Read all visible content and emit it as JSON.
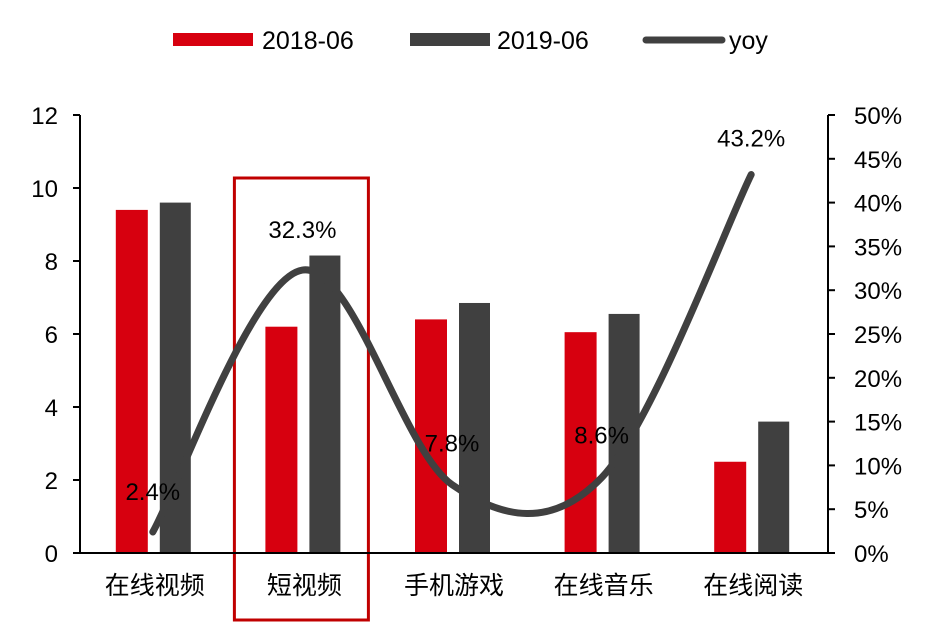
{
  "chart_data": {
    "type": "bar+line",
    "categories": [
      "在线视频",
      "短视频",
      "手机游戏",
      "在线音乐",
      "在线阅读"
    ],
    "series": [
      {
        "name": "2018-06",
        "type": "bar",
        "axis": "left",
        "color": "#d7000f",
        "values": [
          9.4,
          6.2,
          6.4,
          6.05,
          2.5
        ]
      },
      {
        "name": "2019-06",
        "type": "bar",
        "axis": "left",
        "color": "#404040",
        "values": [
          9.6,
          8.15,
          6.85,
          6.55,
          3.6
        ]
      },
      {
        "name": "yoy",
        "type": "line",
        "smooth": true,
        "axis": "right",
        "color": "#404040",
        "values": [
          2.4,
          32.3,
          7.8,
          8.6,
          43.2
        ]
      }
    ],
    "data_labels": [
      "2.4%",
      "32.3%",
      "7.8%",
      "8.6%",
      "43.2%"
    ],
    "left_axis": {
      "range": [
        0,
        12
      ],
      "ticks": [
        "0",
        "2",
        "4",
        "6",
        "8",
        "10",
        "12"
      ]
    },
    "right_axis": {
      "range": [
        0,
        50
      ],
      "ticks": [
        "0%",
        "5%",
        "10%",
        "15%",
        "20%",
        "25%",
        "30%",
        "35%",
        "40%",
        "45%",
        "50%"
      ]
    },
    "highlight_category": "短视频",
    "highlight_color": "#c00000",
    "legend_position": "top",
    "grid": false
  }
}
